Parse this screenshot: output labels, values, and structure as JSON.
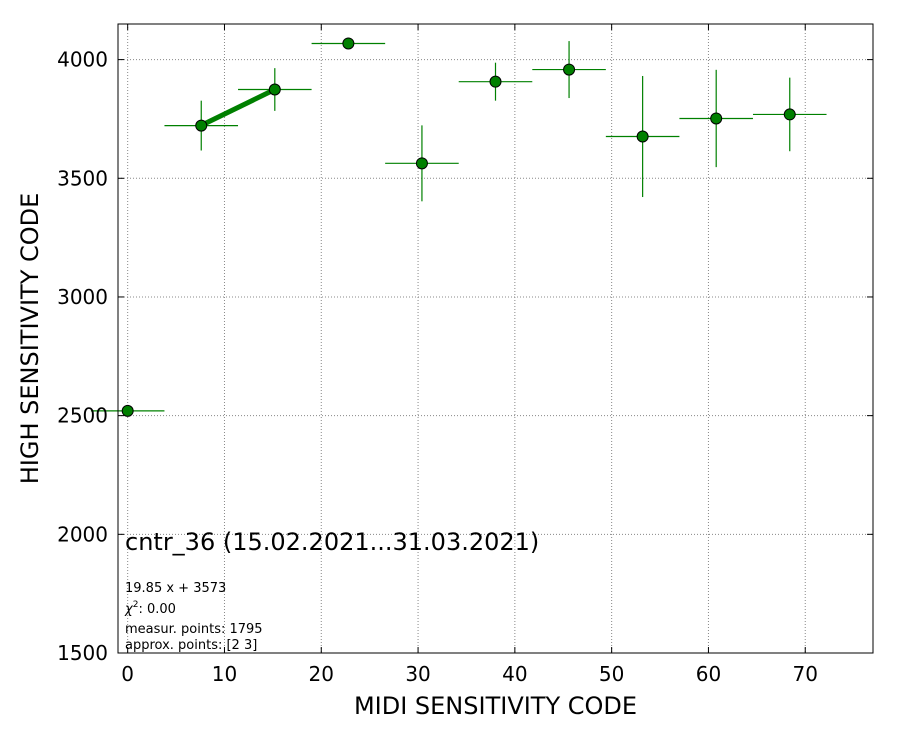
{
  "chart_data": {
    "type": "scatter",
    "title": "",
    "xlabel": "MIDI SENSITIVITY CODE",
    "ylabel": "HIGH SENSITIVITY CODE",
    "xlim": [
      -1,
      77
    ],
    "ylim": [
      1500,
      4150
    ],
    "xticks": [
      0,
      10,
      20,
      30,
      40,
      50,
      60,
      70
    ],
    "yticks": [
      1500,
      2000,
      2500,
      3000,
      3500,
      4000
    ],
    "grid": true,
    "marker_color": "#008000",
    "fit_line_color": "#008000",
    "points": [
      {
        "x": 0.0,
        "y": 2520,
        "xerr": 3.8,
        "yerr": 0
      },
      {
        "x": 7.6,
        "y": 3722,
        "xerr": 3.8,
        "yerr": 105
      },
      {
        "x": 15.2,
        "y": 3874,
        "xerr": 3.8,
        "yerr": 90
      },
      {
        "x": 22.8,
        "y": 4068,
        "xerr": 3.8,
        "yerr": 0
      },
      {
        "x": 30.4,
        "y": 3563,
        "xerr": 3.8,
        "yerr": 160
      },
      {
        "x": 38.0,
        "y": 3907,
        "xerr": 3.8,
        "yerr": 80
      },
      {
        "x": 45.6,
        "y": 3958,
        "xerr": 3.8,
        "yerr": 120
      },
      {
        "x": 53.2,
        "y": 3676,
        "xerr": 3.8,
        "yerr": 255
      },
      {
        "x": 60.8,
        "y": 3752,
        "xerr": 3.8,
        "yerr": 205
      },
      {
        "x": 68.4,
        "y": 3769,
        "xerr": 3.8,
        "yerr": 155
      }
    ],
    "fit_line": {
      "x": [
        7.6,
        15.2
      ],
      "y": [
        3723,
        3874
      ]
    },
    "annotations": {
      "main": "cntr_36 (15.02.2021...31.03.2021)",
      "fit": "19.85 x + 3573",
      "chi_label": "χ",
      "chi_sup": "2",
      "chi_value": ": 0.00",
      "measur": "measur. points: 1795",
      "approx": "approx. points: [2 3]"
    }
  }
}
